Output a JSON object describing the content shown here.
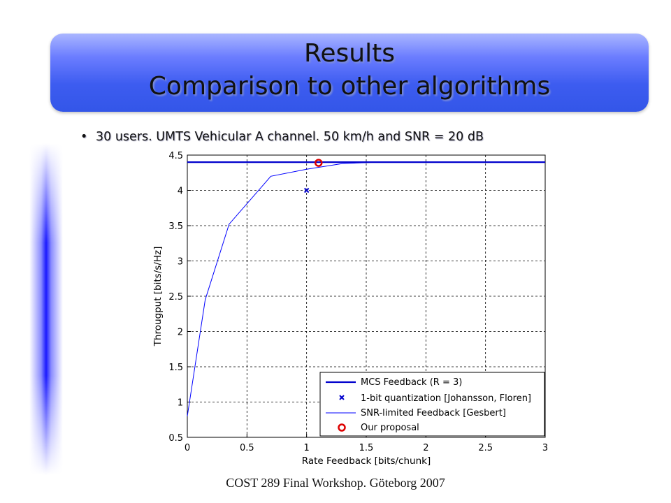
{
  "slide": {
    "title_line1": "Results",
    "title_line2": "Comparison to other algorithms",
    "bullet": "30 users. UMTS Vehicular A channel. 50 km/h and SNR = 20 dB",
    "footer": "COST 289 Final Workshop. Göteborg 2007"
  },
  "chart_data": {
    "type": "line",
    "xlabel": "Rate Feedback [bits/chunk]",
    "ylabel": "Througput [bits/s/Hz]",
    "xlim": [
      0,
      3
    ],
    "ylim": [
      0.5,
      4.5
    ],
    "xticks": [
      0,
      0.5,
      1,
      1.5,
      2,
      2.5,
      3
    ],
    "xtick_labels": [
      "0",
      "0.5",
      "1",
      "1.5",
      "2",
      "2.5",
      "3"
    ],
    "yticks": [
      0.5,
      1,
      1.5,
      2,
      2.5,
      3,
      3.5,
      4,
      4.5
    ],
    "ytick_labels": [
      "0.5",
      "1",
      "1.5",
      "2",
      "2.5",
      "3",
      "3.5",
      "4",
      "4.5"
    ],
    "grid": true,
    "legend_position": "bottom-right",
    "series": [
      {
        "name": "MCS Feedback (R = 3)",
        "style": "thick-line",
        "color": "#0000cc",
        "x": [
          0,
          3
        ],
        "y": [
          4.4,
          4.4
        ]
      },
      {
        "name": "1-bit quantization [Johansson, Floren]",
        "style": "x-marker",
        "color": "#0000cc",
        "x": [
          1
        ],
        "y": [
          4.0
        ]
      },
      {
        "name": "SNR-limited Feedback [Gesbert]",
        "style": "thin-line",
        "color": "#0000ff",
        "x": [
          0,
          0.15,
          0.35,
          0.7,
          1.0,
          1.3,
          1.6,
          3.0
        ],
        "y": [
          0.8,
          2.45,
          3.52,
          4.2,
          4.3,
          4.38,
          4.4,
          4.4
        ]
      },
      {
        "name": "Our proposal",
        "style": "circle-marker",
        "color": "#dd0000",
        "x": [
          1.1
        ],
        "y": [
          4.39
        ]
      }
    ]
  }
}
